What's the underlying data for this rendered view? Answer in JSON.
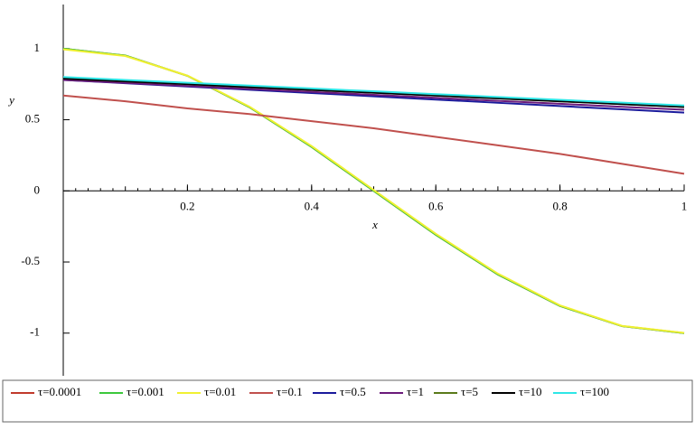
{
  "chart_data": {
    "type": "line",
    "x_label": "x",
    "y_label": "y",
    "x": [
      0,
      0.1,
      0.2,
      0.3,
      0.4,
      0.5,
      0.6,
      0.7,
      0.8,
      0.9,
      1
    ],
    "xlim": [
      0,
      1
    ],
    "xticks": [
      0.2,
      0.4,
      0.6,
      0.8,
      1
    ],
    "ylim": [
      -1.3,
      1.31
    ],
    "yticks": [
      -1,
      -0.5,
      0,
      0.5,
      1
    ],
    "legend": "bottom",
    "series": [
      {
        "name": "τ=0.0001",
        "color": "#c0392b",
        "values": [
          1,
          0.951,
          0.809,
          0.588,
          0.309,
          0,
          -0.309,
          -0.588,
          -0.809,
          -0.951,
          -1
        ]
      },
      {
        "name": "τ=0.001",
        "color": "#3cc83c",
        "values": [
          1,
          0.951,
          0.809,
          0.588,
          0.309,
          0,
          -0.309,
          -0.588,
          -0.809,
          -0.951,
          -1
        ]
      },
      {
        "name": "τ=0.01",
        "color": "#f0f032",
        "values": [
          0.995,
          0.948,
          0.81,
          0.592,
          0.315,
          0.006,
          -0.302,
          -0.582,
          -0.805,
          -0.949,
          -0.998
        ]
      },
      {
        "name": "τ=0.1",
        "color": "#c0504d",
        "values": [
          0.67,
          0.63,
          0.58,
          0.54,
          0.49,
          0.44,
          0.38,
          0.32,
          0.26,
          0.19,
          0.12
        ]
      },
      {
        "name": "τ=0.5",
        "color": "#1a1a9c",
        "values": [
          0.78,
          0.757,
          0.734,
          0.711,
          0.688,
          0.665,
          0.642,
          0.619,
          0.596,
          0.573,
          0.55
        ]
      },
      {
        "name": "τ=1",
        "color": "#6a1a7a",
        "values": [
          0.78,
          0.759,
          0.738,
          0.717,
          0.696,
          0.675,
          0.654,
          0.633,
          0.612,
          0.591,
          0.57
        ]
      },
      {
        "name": "τ=5",
        "color": "#5a7a1a",
        "values": [
          0.79,
          0.77,
          0.75,
          0.73,
          0.71,
          0.69,
          0.67,
          0.65,
          0.63,
          0.61,
          0.59
        ]
      },
      {
        "name": "τ=10",
        "color": "#000000",
        "values": [
          0.79,
          0.77,
          0.75,
          0.73,
          0.71,
          0.69,
          0.67,
          0.65,
          0.63,
          0.61,
          0.59
        ]
      },
      {
        "name": "τ=100",
        "color": "#2ee6e6",
        "values": [
          0.8,
          0.78,
          0.76,
          0.74,
          0.72,
          0.7,
          0.68,
          0.66,
          0.64,
          0.62,
          0.6
        ]
      }
    ]
  }
}
